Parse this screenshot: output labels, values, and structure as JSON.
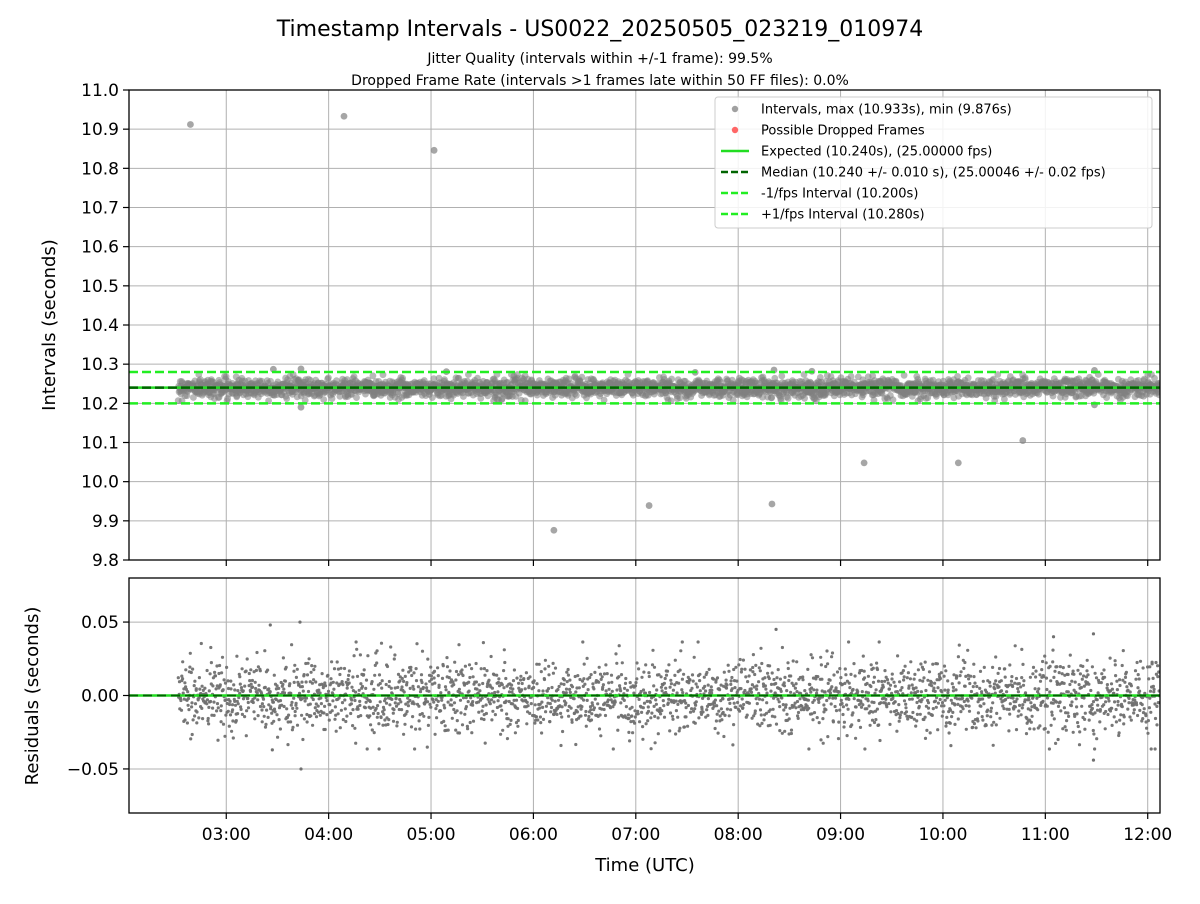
{
  "figure": {
    "title": "Timestamp Intervals - US0022_20250505_023219_010974",
    "subtitle_1": "Jitter Quality (intervals within +/-1 frame): 99.5%",
    "subtitle_2": "Dropped Frame Rate (intervals >1 frames late within 50 FF files): 0.0%"
  },
  "colors": {
    "points": "#808080",
    "dropped": "#ff0000",
    "expected": "#22dd22",
    "median": "#006400",
    "bounds": "#22ee22",
    "grid": "#b0b0b0"
  },
  "chart_data": [
    {
      "type": "scatter",
      "panel": "intervals",
      "xlabel": "",
      "ylabel": "Intervals (seconds)",
      "ylim": [
        9.8,
        11.0
      ],
      "xlim_hours": [
        2.05,
        12.12
      ],
      "x_tick_hours": [
        3,
        4,
        5,
        6,
        7,
        8,
        9,
        10,
        11,
        12
      ],
      "x_tick_labels": [
        "03:00",
        "04:00",
        "05:00",
        "06:00",
        "07:00",
        "08:00",
        "09:00",
        "10:00",
        "11:00",
        "12:00"
      ],
      "y_ticks": [
        9.8,
        9.9,
        10.0,
        10.1,
        10.2,
        10.3,
        10.4,
        10.5,
        10.6,
        10.7,
        10.8,
        10.9,
        11.0
      ],
      "y_tick_labels": [
        "9.8",
        "9.9",
        "10.0",
        "10.1",
        "10.2",
        "10.3",
        "10.4",
        "10.5",
        "10.6",
        "10.7",
        "10.8",
        "10.9",
        "11.0"
      ],
      "grid": true,
      "legend_position": "top-right",
      "legend": [
        {
          "label": "Intervals, max (10.933s), min (9.876s)",
          "kind": "dot",
          "color": "#a0a0a0"
        },
        {
          "label": "Possible Dropped Frames",
          "kind": "dot",
          "color": "#ff6666"
        },
        {
          "label": "Expected (10.240s), (25.00000 fps)",
          "kind": "solid",
          "color": "#22dd22"
        },
        {
          "label": "Median (10.240 +/- 0.010 s), (25.00046 +/- 0.02 fps)",
          "kind": "dashed",
          "color": "#006400"
        },
        {
          "label": "-1/fps Interval (10.200s)",
          "kind": "dashed",
          "color": "#22ee22"
        },
        {
          "label": "+1/fps Interval (10.280s)",
          "kind": "dashed",
          "color": "#22ee22"
        }
      ],
      "reference_lines": {
        "expected": 10.24,
        "median": 10.24,
        "lower": 10.2,
        "upper": 10.28
      },
      "band": {
        "x_start_hour": 2.53,
        "x_end_hour": 12.12,
        "center": 10.24,
        "spread": 0.012,
        "count": 2600
      },
      "outliers": [
        {
          "x_hour": 2.65,
          "y": 10.912
        },
        {
          "x_hour": 4.15,
          "y": 10.933
        },
        {
          "x_hour": 5.03,
          "y": 10.846
        },
        {
          "x_hour": 6.2,
          "y": 9.876
        },
        {
          "x_hour": 7.13,
          "y": 9.939
        },
        {
          "x_hour": 8.33,
          "y": 9.943
        },
        {
          "x_hour": 9.23,
          "y": 10.048
        },
        {
          "x_hour": 10.15,
          "y": 10.048
        },
        {
          "x_hour": 10.78,
          "y": 10.105
        },
        {
          "x_hour": 3.46,
          "y": 10.287
        },
        {
          "x_hour": 3.73,
          "y": 10.288
        },
        {
          "x_hour": 3.73,
          "y": 10.19
        },
        {
          "x_hour": 8.35,
          "y": 10.285
        },
        {
          "x_hour": 8.72,
          "y": 10.282
        },
        {
          "x_hour": 11.48,
          "y": 10.284
        },
        {
          "x_hour": 11.48,
          "y": 10.196
        },
        {
          "x_hour": 5.15,
          "y": 10.281
        },
        {
          "x_hour": 7.58,
          "y": 10.279
        }
      ]
    },
    {
      "type": "scatter",
      "panel": "residuals",
      "xlabel": "Time (UTC)",
      "ylabel": "Residuals (seconds)",
      "ylim": [
        -0.08,
        0.08
      ],
      "xlim_hours": [
        2.05,
        12.12
      ],
      "x_tick_hours": [
        3,
        4,
        5,
        6,
        7,
        8,
        9,
        10,
        11,
        12
      ],
      "x_tick_labels": [
        "03:00",
        "04:00",
        "05:00",
        "06:00",
        "07:00",
        "08:00",
        "09:00",
        "10:00",
        "11:00",
        "12:00"
      ],
      "y_ticks": [
        -0.05,
        0.0,
        0.05
      ],
      "y_tick_labels": [
        "−0.05",
        "0.00",
        "0.05"
      ],
      "grid": true,
      "reference_lines": {
        "zero": 0.0
      },
      "band": {
        "x_start_hour": 2.53,
        "x_end_hour": 12.12,
        "center": 0.0,
        "spread": 0.013,
        "count": 2600
      },
      "outliers": [
        {
          "x_hour": 3.43,
          "y": 0.048
        },
        {
          "x_hour": 3.72,
          "y": 0.05
        },
        {
          "x_hour": 3.73,
          "y": -0.05
        },
        {
          "x_hour": 11.47,
          "y": 0.042
        },
        {
          "x_hour": 11.47,
          "y": -0.044
        },
        {
          "x_hour": 8.37,
          "y": 0.045
        },
        {
          "x_hour": 3.45,
          "y": -0.037
        },
        {
          "x_hour": 11.08,
          "y": 0.04
        }
      ]
    }
  ]
}
